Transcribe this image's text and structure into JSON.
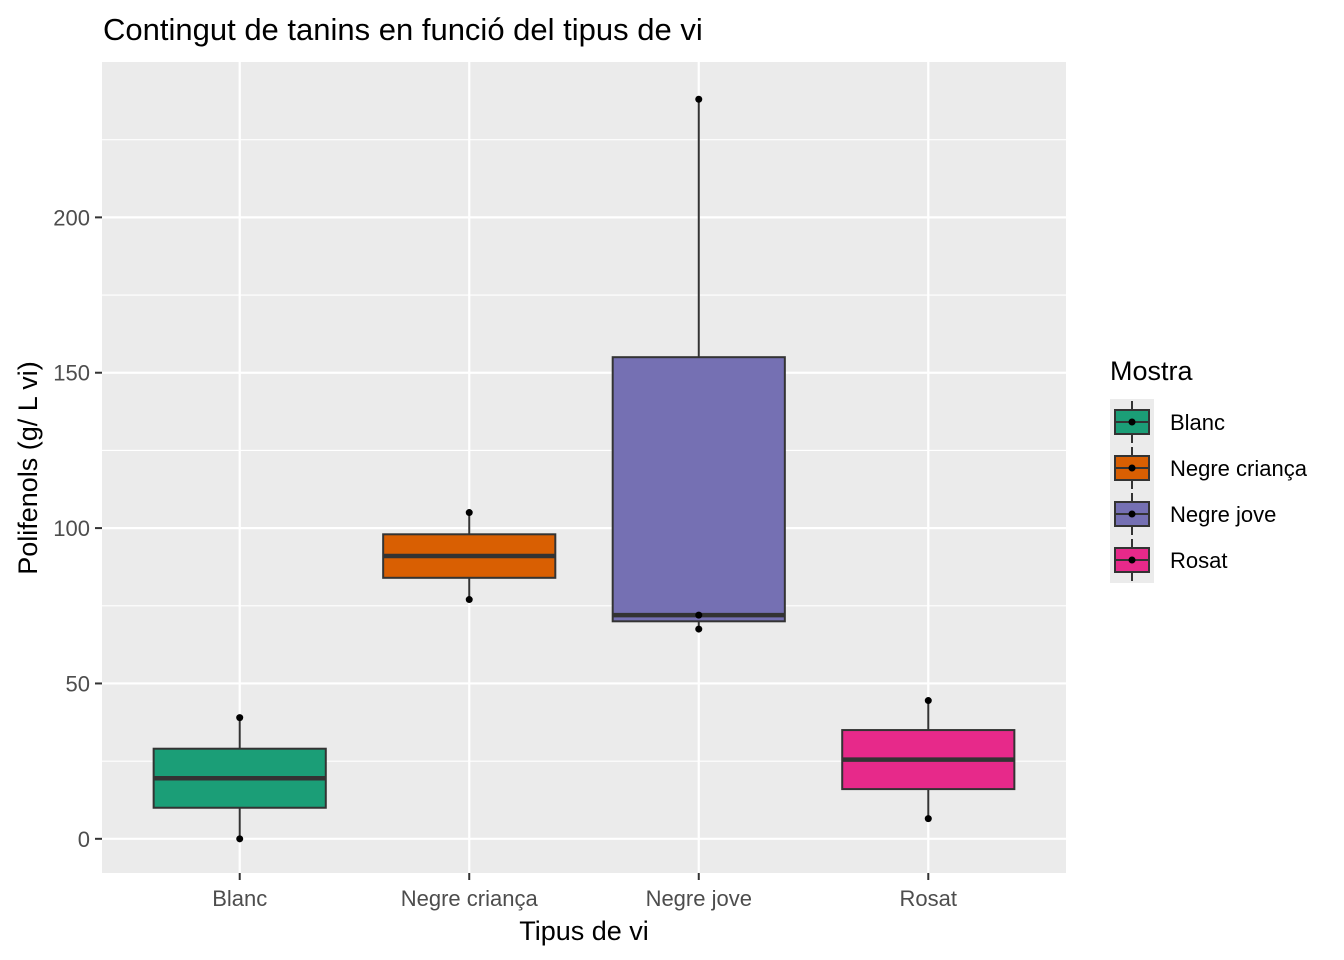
{
  "chart_data": {
    "type": "box",
    "title": "Contingut de tanins en funció del tipus de vi",
    "xlabel": "Tipus de vi",
    "ylabel": "Polifenols (g/ L vi)",
    "ylim": [
      -11,
      250
    ],
    "yticks": [
      0,
      50,
      100,
      150,
      200
    ],
    "grid": true,
    "legend": {
      "title": "Mostra",
      "position": "right"
    },
    "categories": [
      "Blanc",
      "Negre criança",
      "Negre jove",
      "Rosat"
    ],
    "boxes": [
      {
        "name": "Blanc",
        "color": "#1B9E77",
        "whisker_low": 0,
        "q1": 10,
        "median": 19.5,
        "q3": 29,
        "whisker_high": 39,
        "points": [
          0,
          39
        ]
      },
      {
        "name": "Negre criança",
        "color": "#D95F02",
        "whisker_low": 77,
        "q1": 84,
        "median": 91,
        "q3": 98,
        "whisker_high": 105,
        "points": [
          77,
          105
        ]
      },
      {
        "name": "Negre jove",
        "color": "#7570B3",
        "whisker_low": 67.5,
        "q1": 70,
        "median": 72,
        "q3": 155,
        "whisker_high": 238,
        "points": [
          67.5,
          72,
          238
        ]
      },
      {
        "name": "Rosat",
        "color": "#E7298A",
        "whisker_low": 6.5,
        "q1": 16,
        "median": 25.5,
        "q3": 35,
        "whisker_high": 44.5,
        "points": [
          6.5,
          44.5
        ]
      }
    ]
  }
}
